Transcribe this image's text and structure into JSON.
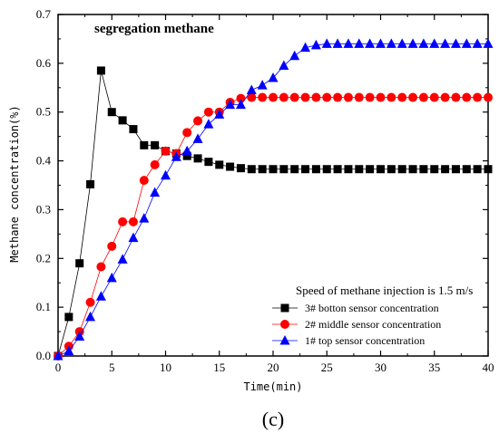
{
  "chart_data": {
    "type": "line",
    "title": "segregation methane",
    "xlabel": "Time(min)",
    "ylabel": "Methane concentration(%)",
    "xlim": [
      0,
      40
    ],
    "ylim": [
      0,
      0.7
    ],
    "xticks": [
      "0",
      "5",
      "10",
      "15",
      "20",
      "25",
      "30",
      "35",
      "40"
    ],
    "yticks": [
      "0.0",
      "0.1",
      "0.2",
      "0.3",
      "0.4",
      "0.5",
      "0.6",
      "0.7"
    ],
    "grid": false,
    "legend_title": "Speed of methane injection is 1.5 m/s",
    "legend_position": "bottom-right",
    "panel_label": "(c)",
    "series": [
      {
        "name": "3# botton sensor concentration",
        "marker": "square",
        "color": "#000000",
        "x": [
          0,
          1,
          2,
          3,
          4,
          5,
          6,
          7,
          8,
          9,
          10,
          11,
          12,
          13,
          14,
          15,
          16,
          17,
          18,
          19,
          20,
          21,
          22,
          23,
          24,
          25,
          26,
          27,
          28,
          29,
          30,
          31,
          32,
          33,
          34,
          35,
          36,
          37,
          38,
          39,
          40
        ],
        "y": [
          0,
          0.08,
          0.19,
          0.352,
          0.585,
          0.5,
          0.483,
          0.465,
          0.432,
          0.432,
          0.42,
          0.415,
          0.41,
          0.405,
          0.398,
          0.392,
          0.388,
          0.385,
          0.383,
          0.383,
          0.383,
          0.383,
          0.383,
          0.383,
          0.383,
          0.383,
          0.383,
          0.383,
          0.383,
          0.383,
          0.383,
          0.383,
          0.383,
          0.383,
          0.383,
          0.383,
          0.383,
          0.383,
          0.383,
          0.383,
          0.383
        ]
      },
      {
        "name": "2# middle sensor concentration",
        "marker": "circle",
        "color": "#ff0000",
        "x": [
          0,
          1,
          2,
          3,
          4,
          5,
          6,
          7,
          8,
          9,
          10,
          11,
          12,
          13,
          14,
          15,
          16,
          17,
          18,
          19,
          20,
          21,
          22,
          23,
          24,
          25,
          26,
          27,
          28,
          29,
          30,
          31,
          32,
          33,
          34,
          35,
          36,
          37,
          38,
          39,
          40
        ],
        "y": [
          0,
          0.02,
          0.05,
          0.11,
          0.183,
          0.225,
          0.275,
          0.275,
          0.36,
          0.392,
          0.42,
          0.415,
          0.458,
          0.482,
          0.5,
          0.5,
          0.52,
          0.528,
          0.53,
          0.53,
          0.53,
          0.53,
          0.53,
          0.53,
          0.53,
          0.53,
          0.53,
          0.53,
          0.53,
          0.53,
          0.53,
          0.53,
          0.53,
          0.53,
          0.53,
          0.53,
          0.53,
          0.53,
          0.53,
          0.53,
          0.53
        ]
      },
      {
        "name": "1# top sensor concentration",
        "marker": "triangle",
        "color": "#0000ff",
        "x": [
          0,
          1,
          2,
          3,
          4,
          5,
          6,
          7,
          8,
          9,
          10,
          11,
          12,
          13,
          14,
          15,
          16,
          17,
          18,
          19,
          20,
          21,
          22,
          23,
          24,
          25,
          26,
          27,
          28,
          29,
          30,
          31,
          32,
          33,
          34,
          35,
          36,
          37,
          38,
          39,
          40
        ],
        "y": [
          0,
          0.01,
          0.04,
          0.08,
          0.122,
          0.16,
          0.198,
          0.242,
          0.282,
          0.335,
          0.37,
          0.408,
          0.42,
          0.445,
          0.475,
          0.495,
          0.515,
          0.515,
          0.545,
          0.555,
          0.57,
          0.595,
          0.615,
          0.632,
          0.637,
          0.64,
          0.64,
          0.64,
          0.64,
          0.64,
          0.64,
          0.64,
          0.64,
          0.64,
          0.64,
          0.64,
          0.64,
          0.64,
          0.64,
          0.64,
          0.64
        ]
      }
    ]
  }
}
